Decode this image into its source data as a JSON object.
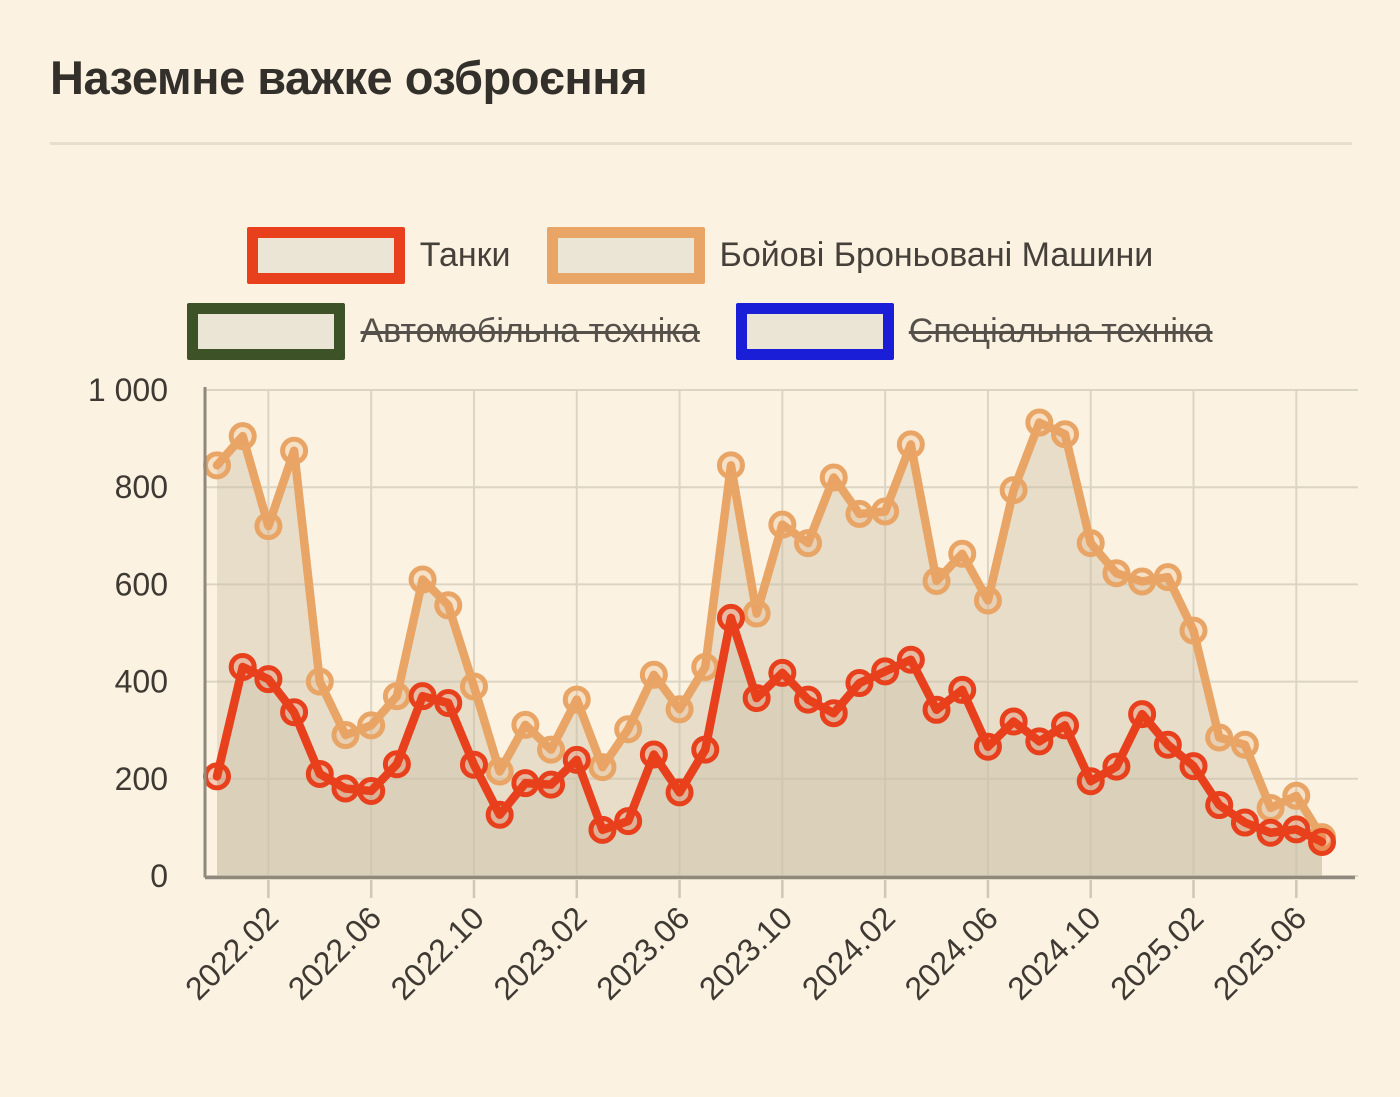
{
  "title": "Наземне важке озброєння",
  "legend": [
    {
      "label": "Танки",
      "color": "#e8401c",
      "active": true
    },
    {
      "label": "Бойові Броньовані Машини",
      "color": "#e9a566",
      "active": true
    },
    {
      "label": "Автомобільна техніка",
      "color": "#3d5226",
      "active": false
    },
    {
      "label": "Спеціальна техніка",
      "color": "#1a1ed6",
      "active": false
    }
  ],
  "colors": {
    "background": "#fbf2e2",
    "text_dark": "#33302b",
    "text_axis": "#3e3a33",
    "grid": "#dcd5c3",
    "axis": "#8f897d",
    "minor_tick": "#cfc8b6",
    "area_fill": "#cbc2a6",
    "swatch_fill": "#eae5d4",
    "tanks": "#e8401c",
    "bbm": "#e9a566",
    "auto": "#3d5226",
    "special": "#1a1ed6"
  },
  "chart_data": {
    "type": "line",
    "title": "Наземне важке озброєння",
    "xlabel": "",
    "ylabel": "",
    "ylim": [
      0,
      1000
    ],
    "yticks": [
      0,
      200,
      400,
      600,
      800,
      1000
    ],
    "grid": true,
    "legend_position": "top",
    "marker": "circle",
    "area_fill": true,
    "x": [
      "2022.02",
      "2022.03",
      "2022.04",
      "2022.05",
      "2022.06",
      "2022.07",
      "2022.08",
      "2022.09",
      "2022.10",
      "2022.11",
      "2022.12",
      "2023.01",
      "2023.02",
      "2023.03",
      "2023.04",
      "2023.05",
      "2023.06",
      "2023.07",
      "2023.08",
      "2023.09",
      "2023.10",
      "2023.11",
      "2023.12",
      "2024.01",
      "2024.02",
      "2024.03",
      "2024.04",
      "2024.05",
      "2024.06",
      "2024.07",
      "2024.08",
      "2024.09",
      "2024.10",
      "2024.11",
      "2024.12",
      "2025.01",
      "2025.02",
      "2025.03",
      "2025.04",
      "2025.05",
      "2025.06",
      "2025.07",
      "2025.08",
      "2025.09"
    ],
    "xtick_labels": [
      "2022.02",
      "2022.06",
      "2022.10",
      "2023.02",
      "2023.06",
      "2023.10",
      "2024.02",
      "2024.06",
      "2024.10",
      "2025.02",
      "2025.06"
    ],
    "xtick_month_indices": [
      2,
      6,
      10,
      14,
      18,
      22,
      26,
      30,
      34,
      38,
      42
    ],
    "series": [
      {
        "name": "Танки",
        "color": "#e8401c",
        "values": [
          205,
          430,
          405,
          337,
          210,
          180,
          175,
          230,
          370,
          356,
          229,
          126,
          191,
          188,
          239,
          95,
          113,
          250,
          172,
          260,
          531,
          366,
          418,
          363,
          335,
          397,
          421,
          445,
          342,
          383,
          266,
          318,
          277,
          310,
          195,
          225,
          333,
          270,
          226,
          146,
          110,
          89,
          96,
          70
        ]
      },
      {
        "name": "Бойові Броньовані Машини",
        "color": "#e9a566",
        "values": [
          845,
          905,
          720,
          875,
          400,
          290,
          310,
          370,
          610,
          557,
          390,
          215,
          311,
          260,
          363,
          224,
          302,
          414,
          343,
          430,
          845,
          540,
          723,
          685,
          820,
          745,
          750,
          888,
          607,
          663,
          567,
          794,
          933,
          909,
          685,
          623,
          606,
          615,
          505,
          285,
          270,
          140,
          165,
          80
        ]
      }
    ],
    "disabled_series": [
      "Автомобільна техніка",
      "Спеціальна техніка"
    ]
  }
}
